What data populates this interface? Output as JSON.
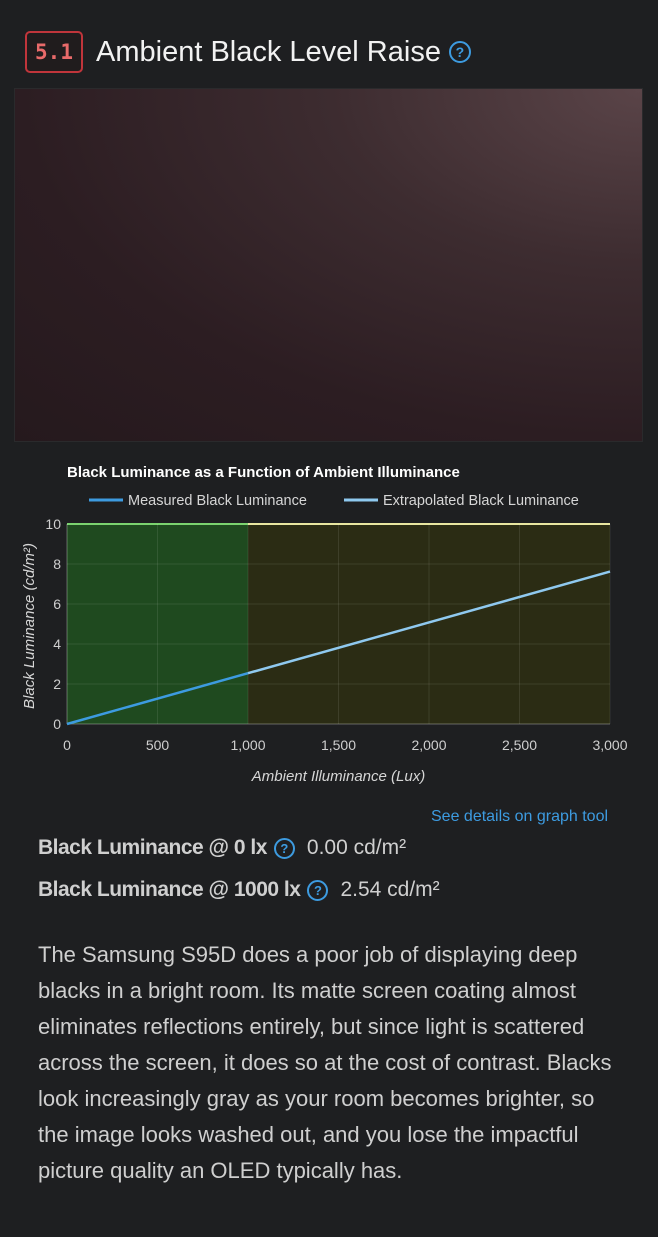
{
  "section": {
    "number": "5.1",
    "title": "Ambient Black Level Raise",
    "help_glyph": "?"
  },
  "photo": {
    "description": "test photo of black screen in bright room"
  },
  "chart_data": {
    "type": "line",
    "title": "Black Luminance as a Function of Ambient Illuminance",
    "xlabel": "Ambient Illuminance (Lux)",
    "ylabel": "Black Luminance (cd/m²)",
    "xlim": [
      0,
      3000
    ],
    "ylim": [
      0,
      10
    ],
    "x_ticks": [
      "0",
      "500",
      "1,000",
      "1,500",
      "2,000",
      "2,500",
      "3,000"
    ],
    "y_ticks": [
      "0",
      "2",
      "4",
      "6",
      "8",
      "10"
    ],
    "grid": true,
    "legend_position": "top",
    "series": [
      {
        "name": "Measured Black Luminance",
        "color": "#3d9be0",
        "x": [
          0,
          1000
        ],
        "y": [
          0,
          2.54
        ]
      },
      {
        "name": "Extrapolated Black Luminance",
        "color": "#8fc9ef",
        "x": [
          1000,
          3000
        ],
        "y": [
          2.54,
          7.62
        ]
      }
    ],
    "regions": [
      {
        "x": [
          0,
          1000
        ],
        "color": "#1f4a1f",
        "top_color": "#7bd36f"
      },
      {
        "x": [
          1000,
          3000
        ],
        "color": "#2b2c14",
        "top_color": "#e8e6a0"
      }
    ]
  },
  "link": {
    "label": "See details on graph tool"
  },
  "stats": [
    {
      "label": "Black Luminance @ 0 lx",
      "value": "0.00 cd/m²"
    },
    {
      "label": "Black Luminance @ 1000 lx",
      "value": "2.54 cd/m²"
    }
  ],
  "description": "The Samsung S95D does a poor job of displaying deep blacks in a bright room. Its matte screen coating almost eliminates reflections entirely, but since light is scattered across the screen, it does so at the cost of contrast. Blacks look increasingly gray as your room becomes brighter, so the image looks washed out, and you lose the impactful picture quality an OLED typically has."
}
